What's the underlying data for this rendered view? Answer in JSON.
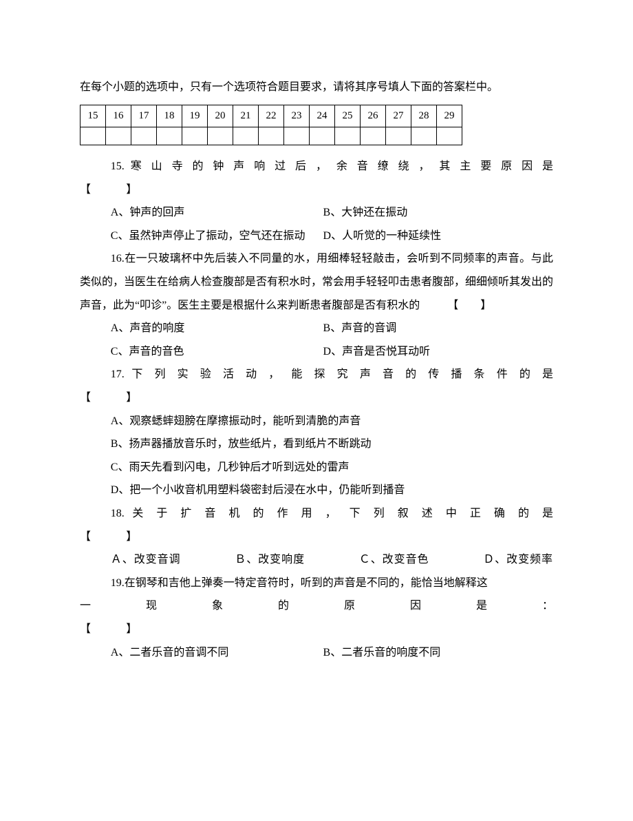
{
  "intro": "在每个小题的选项中，只有一个选项符合题目要求，请将其序号填人下面的答案栏中。",
  "headers": [
    "15",
    "16",
    "17",
    "18",
    "19",
    "20",
    "21",
    "22",
    "23",
    "24",
    "25",
    "26",
    "27",
    "28",
    "29"
  ],
  "q15": {
    "stem": "15. 寒 山 寺 的 钟 声 响 过 后 ， 余 音 缭 绕 ， 其 主 要 原 因 是",
    "bracket": "【　　】",
    "a": "A、钟声的回声",
    "b": "B、大钟还在振动",
    "c": "C、虽然钟声停止了振动，空气还在振动",
    "d": "D、人听觉的一种延续性"
  },
  "q16": {
    "body": "16.在一只玻璃杯中先后装入不同量的水，用细棒轻轻敲击，会听到不同频率的声音。与此类似的，当医生在给病人检查腹部是否有积水时，常会用手轻轻叩击患者腹部，细细倾听其发出的声音，此为“叩诊”。医生主要是根据什么来判断患者腹部是否有积水的　　　【　　】",
    "a": "A、声音的响度",
    "b": "B、声音的音调",
    "c": "C、声音的音色",
    "d": "D、声音是否悦耳动听"
  },
  "q17": {
    "stem": "17. 下 列 实 验 活 动 ， 能 探 究 声 音 的 传 播 条 件 的 是",
    "bracket": "【　　】",
    "a": "A、观察蟋蟀翅膀在摩擦振动时，能听到清脆的声音",
    "b": "B、扬声器播放音乐时，放些纸片，看到纸片不断跳动",
    "c": "C、雨天先看到闪电，几秒钟后才听到远处的雷声",
    "d": "D、把一个小收音机用塑料袋密封后浸在水中，仍能听到播音"
  },
  "q18": {
    "stem": "18. 关 于 扩 音 机 的 作 用 ， 下 列 叙 述 中 正 确 的 是",
    "bracket": "【　　】",
    "a": "Ａ、改变音调",
    "b": "Ｂ、改变响度",
    "c": "Ｃ、改变音色",
    "d": "Ｄ、改变频率"
  },
  "q19": {
    "line1": "19.在钢琴和吉他上弹奏一特定音符时，听到的声音是不同的，能恰当地解释这",
    "line2": "一现象的原因是：",
    "bracket": "【　　】",
    "a": "A、二者乐音的音调不同",
    "b": "B、二者乐音的响度不同"
  }
}
